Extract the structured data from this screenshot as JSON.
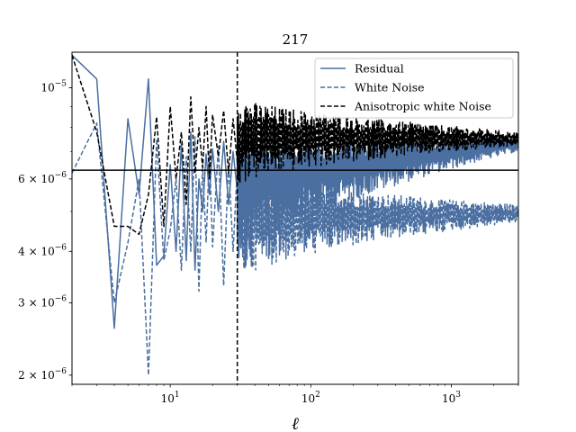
{
  "chart_data": {
    "type": "line",
    "title": "217",
    "xlabel": "ℓ",
    "ylabel": "",
    "xscale": "log",
    "yscale": "log",
    "xlim": [
      2,
      3000
    ],
    "ylim": [
      1.9e-06,
      1.22e-05
    ],
    "x_ticks": [
      {
        "value": 10,
        "base": "10",
        "exp": "1"
      },
      {
        "value": 100,
        "base": "10",
        "exp": "2"
      },
      {
        "value": 1000,
        "base": "10",
        "exp": "3"
      }
    ],
    "y_ticks": [
      {
        "value": 1e-05,
        "base": "10",
        "exp": "−5",
        "mant": ""
      },
      {
        "value": 6e-06,
        "base": "10",
        "exp": "−6",
        "mant": "6 × "
      },
      {
        "value": 4e-06,
        "base": "10",
        "exp": "−6",
        "mant": "4 × "
      },
      {
        "value": 3e-06,
        "base": "10",
        "exp": "−6",
        "mant": "3 × "
      },
      {
        "value": 2e-06,
        "base": "10",
        "exp": "−6",
        "mant": "2 × "
      }
    ],
    "hline": {
      "y": 6.3e-06,
      "color": "#000000"
    },
    "vline": {
      "x": 30,
      "color": "#000000",
      "style": "dashed"
    },
    "legend": {
      "location": "upper right"
    },
    "series": [
      {
        "name": "Residual",
        "color": "#4a6fa0",
        "style": "solid",
        "x": [
          2,
          3,
          4,
          5,
          6,
          7,
          8,
          9,
          10,
          11,
          12,
          13,
          14,
          15,
          16,
          17,
          18,
          19,
          20,
          22,
          24,
          26,
          28,
          30
        ],
        "y": [
          1.2e-05,
          1.05e-05,
          2.6e-06,
          8.4e-06,
          5.5e-06,
          1.05e-05,
          3.7e-06,
          3.9e-06,
          6.5e-06,
          4e-06,
          7.3e-06,
          3.8e-06,
          7.8e-06,
          3.6e-06,
          6e-06,
          5e-06,
          6.9e-06,
          5.5e-06,
          7.1e-06,
          5e-06,
          7.4e-06,
          5.2e-06,
          7e-06,
          5.6e-06
        ],
        "band": {
          "x_start": 30,
          "x_end": 3000,
          "center_start": 5.8e-06,
          "center_end": 7.3e-06,
          "spread_start": 0.35,
          "spread_end": 0.04
        }
      },
      {
        "name": "White Noise",
        "color": "#4a6fa0",
        "style": "dashed",
        "x": [
          2,
          3,
          4,
          5,
          6,
          7,
          8,
          9,
          10,
          11,
          12,
          13,
          14,
          15,
          16,
          17,
          18,
          19,
          20,
          22,
          24,
          26,
          28,
          30
        ],
        "y": [
          6.2e-06,
          8.2e-06,
          3e-06,
          4.2e-06,
          6e-06,
          2e-06,
          7.5e-06,
          3.8e-06,
          4.5e-06,
          6e-06,
          3.6e-06,
          6.8e-06,
          4e-06,
          7.6e-06,
          3.2e-06,
          6.5e-06,
          4.2e-06,
          7e-06,
          4.1e-06,
          7.2e-06,
          3.3e-06,
          6.6e-06,
          4e-06,
          6.4e-06
        ],
        "band": {
          "x_start": 30,
          "x_end": 3000,
          "center_start": 4.8e-06,
          "center_end": 4.95e-06,
          "spread_start": 0.3,
          "spread_end": 0.05
        }
      },
      {
        "name": "Anisotropic white Noise",
        "color": "#000000",
        "style": "dashed",
        "x": [
          2,
          3,
          4,
          5,
          6,
          7,
          8,
          9,
          10,
          11,
          12,
          13,
          14,
          15,
          16,
          17,
          18,
          19,
          20,
          22,
          24,
          26,
          28,
          30
        ],
        "y": [
          1.2e-05,
          7.8e-06,
          4.6e-06,
          4.6e-06,
          4.4e-06,
          5.5e-06,
          8.5e-06,
          4.6e-06,
          9e-06,
          6e-06,
          7.8e-06,
          5.2e-06,
          9.5e-06,
          6.2e-06,
          8e-06,
          6.4e-06,
          9e-06,
          6e-06,
          8.6e-06,
          6.8e-06,
          8.8e-06,
          6.2e-06,
          8.4e-06,
          6.6e-06
        ],
        "band": {
          "x_start": 30,
          "x_end": 3000,
          "center_start": 7.6e-06,
          "center_end": 7.5e-06,
          "spread_start": 0.25,
          "spread_end": 0.04
        }
      }
    ]
  }
}
